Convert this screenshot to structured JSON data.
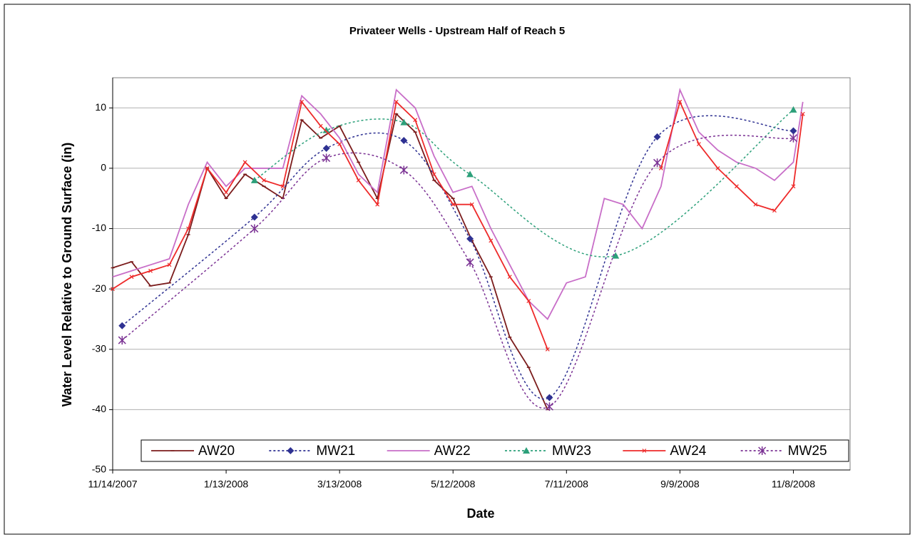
{
  "chart_data": {
    "type": "line",
    "title": "Privateer Wells - Upstream Half of Reach 5",
    "x_label": "Date",
    "y_label": "Water Level Relative to Ground Surface (in)",
    "xlim": [
      "2007-11-14",
      "2008-12-08"
    ],
    "xticks": [
      {
        "value": "2007-11-14",
        "label": "11/14/2007"
      },
      {
        "value": "2008-01-13",
        "label": "1/13/2008"
      },
      {
        "value": "2008-03-13",
        "label": "3/13/2008"
      },
      {
        "value": "2008-05-12",
        "label": "5/12/2008"
      },
      {
        "value": "2008-07-11",
        "label": "7/11/2008"
      },
      {
        "value": "2008-09-09",
        "label": "9/9/2008"
      },
      {
        "value": "2008-11-08",
        "label": "11/8/2008"
      }
    ],
    "ylim": [
      -50,
      15
    ],
    "yticks": [
      -50,
      -40,
      -30,
      -20,
      -10,
      0,
      10
    ],
    "grid": true,
    "legend": "bottom",
    "series": [
      {
        "name": "AW20",
        "color": "#7b1c1c",
        "marker": "dash",
        "dashed": false,
        "x": [
          "2007-11-14",
          "2007-11-24",
          "2007-12-04",
          "2007-12-14",
          "2007-12-24",
          "2008-01-03",
          "2008-01-13",
          "2008-01-23",
          "2008-02-02",
          "2008-02-12",
          "2008-02-22",
          "2008-03-03",
          "2008-03-13",
          "2008-03-23",
          "2008-04-02",
          "2008-04-12",
          "2008-04-22",
          "2008-05-02",
          "2008-05-12",
          "2008-05-22",
          "2008-06-01",
          "2008-06-11",
          "2008-06-21",
          "2008-07-01"
        ],
        "values": [
          -16.5,
          -15.5,
          -19.5,
          -19,
          -11,
          0,
          -5,
          -1,
          -3,
          -5,
          8,
          5,
          7,
          1,
          -5,
          9,
          6,
          -2,
          -5,
          -12,
          -18,
          -28,
          -33,
          -40
        ]
      },
      {
        "name": "MW21",
        "color": "#2e3192",
        "marker": "diamond",
        "dashed": true,
        "x": [
          "2007-11-19",
          "2008-01-28",
          "2008-03-06",
          "2008-04-16",
          "2008-05-21",
          "2008-07-02",
          "2008-08-28",
          "2008-11-08"
        ],
        "values": [
          -26.1,
          -8.1,
          3.3,
          4.6,
          -11.7,
          -38,
          5.2,
          6.2
        ]
      },
      {
        "name": "AW22",
        "color": "#c86ec8",
        "marker": "none",
        "dashed": false,
        "x": [
          "2007-11-14",
          "2007-11-24",
          "2007-12-04",
          "2007-12-14",
          "2007-12-24",
          "2008-01-03",
          "2008-01-13",
          "2008-01-23",
          "2008-02-02",
          "2008-02-12",
          "2008-02-22",
          "2008-03-03",
          "2008-03-13",
          "2008-03-23",
          "2008-04-02",
          "2008-04-12",
          "2008-04-22",
          "2008-05-02",
          "2008-05-12",
          "2008-05-22",
          "2008-06-01",
          "2008-06-11",
          "2008-06-21",
          "2008-07-01",
          "2008-07-11",
          "2008-07-21",
          "2008-07-31",
          "2008-08-10",
          "2008-08-20",
          "2008-08-30",
          "2008-09-09",
          "2008-09-19",
          "2008-09-29",
          "2008-10-09",
          "2008-10-19",
          "2008-10-29",
          "2008-11-08",
          "2008-11-13"
        ],
        "values": [
          -18,
          -17,
          -16,
          -15,
          -6,
          1,
          -3,
          0,
          0,
          0,
          12,
          9,
          5,
          -1,
          -4,
          13,
          10,
          2,
          -4,
          -3,
          -10,
          -16,
          -22,
          -25,
          -19,
          -18,
          -5,
          -6,
          -10,
          -3,
          13,
          6,
          3,
          1,
          0,
          -2,
          1,
          11
        ]
      },
      {
        "name": "MW23",
        "color": "#2ca07a",
        "marker": "triangle",
        "dashed": true,
        "x": [
          "2008-01-28",
          "2008-03-06",
          "2008-04-16",
          "2008-05-21",
          "2008-08-06",
          "2008-11-08"
        ],
        "values": [
          -2,
          6.3,
          7.6,
          -1,
          -14.5,
          9.7
        ]
      },
      {
        "name": "AW24",
        "color": "#ee2a2a",
        "marker": "cross",
        "dashed": false,
        "x": [
          "2007-11-14",
          "2007-11-24",
          "2007-12-04",
          "2007-12-14",
          "2007-12-24",
          "2008-01-03",
          "2008-01-13",
          "2008-01-23",
          "2008-02-02",
          "2008-02-12",
          "2008-02-22",
          "2008-03-03",
          "2008-03-13",
          "2008-03-23",
          "2008-04-02",
          "2008-04-12",
          "2008-04-22",
          "2008-05-02",
          "2008-05-12",
          "2008-05-22",
          "2008-06-01",
          "2008-06-11",
          "2008-06-21",
          "2008-07-01",
          "2008-07-11",
          "2008-08-30",
          "2008-09-09",
          "2008-09-19",
          "2008-09-29",
          "2008-10-09",
          "2008-10-19",
          "2008-10-29",
          "2008-11-08",
          "2008-11-13"
        ],
        "values": [
          -20,
          -18,
          -17,
          -16,
          -10,
          0,
          -4,
          1,
          -2,
          -3,
          11,
          7,
          4,
          -2,
          -6,
          11,
          8,
          -1,
          -6,
          -6,
          -12,
          -18,
          -22,
          -30,
          null,
          0,
          11,
          4,
          0,
          -3,
          -6,
          -7,
          -3,
          9
        ]
      },
      {
        "name": "MW25",
        "color": "#7b3294",
        "marker": "star",
        "dashed": true,
        "x": [
          "2007-11-19",
          "2008-01-28",
          "2008-03-06",
          "2008-04-16",
          "2008-05-21",
          "2008-07-02",
          "2008-08-28",
          "2008-11-08"
        ],
        "values": [
          -28.5,
          -10,
          1.7,
          -0.3,
          -15.6,
          -39.5,
          0.9,
          5
        ]
      }
    ]
  }
}
